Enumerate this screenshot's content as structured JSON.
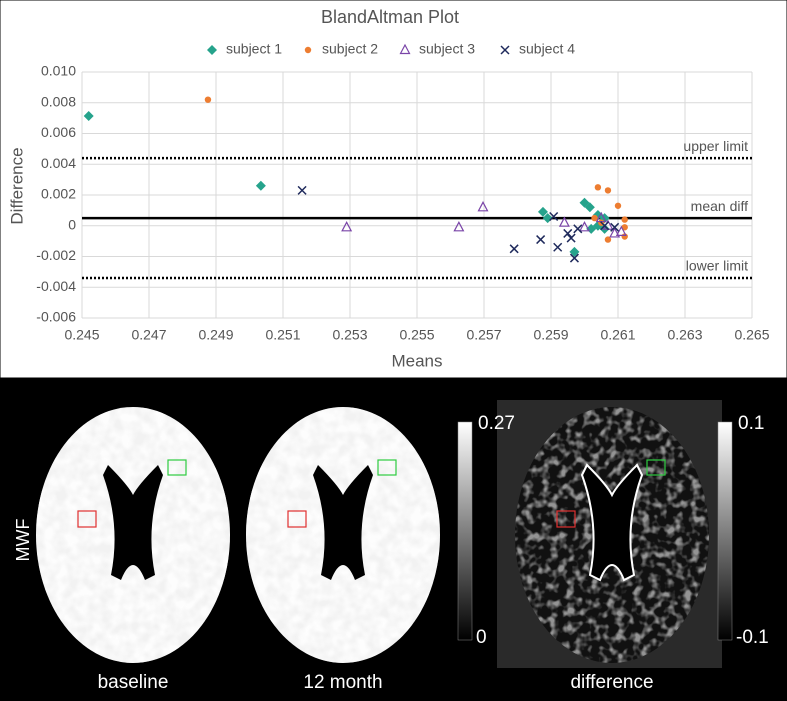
{
  "chart_data": {
    "type": "scatter",
    "title": "BlandAltman Plot",
    "x_label": "Means",
    "y_label": "Difference",
    "xlim": [
      0.245,
      0.265
    ],
    "xticks": [
      0.245,
      0.247,
      0.249,
      0.251,
      0.253,
      0.255,
      0.257,
      0.259,
      0.261,
      0.263,
      0.265
    ],
    "ylim": [
      -0.006,
      0.01
    ],
    "yticks": [
      -0.006,
      -0.004,
      -0.002,
      0,
      0.002,
      0.004,
      0.006,
      0.008,
      {
        "value": 0.01,
        "label": "0.010"
      }
    ],
    "grid": true,
    "legend": "top",
    "series": [
      {
        "name": "subject 1",
        "color": "#26a38c",
        "marker": "diamond",
        "x": [
          0.2452,
          0.25034,
          0.25876,
          0.2589,
          0.26,
          0.26016,
          0.2604,
          0.2602,
          0.2604,
          0.2606,
          0.2597,
          0.2606
        ],
        "values": [
          0.00714,
          0.0026,
          0.0009,
          0.0005,
          0.0015,
          0.0012,
          0.0007,
          -0.0002,
          0,
          0.0005,
          -0.0017,
          -0.0002
        ]
      },
      {
        "name": "subject 2",
        "color": "#ed7d31",
        "marker": "circle",
        "x": [
          0.24876,
          0.2604,
          0.2607,
          0.261,
          0.2612,
          0.2612,
          0.2607,
          0.2612,
          0.2605,
          0.2603
        ],
        "values": [
          0.0082,
          0.0025,
          0.0023,
          0.0013,
          0.0004,
          -0.0001,
          -0.0009,
          -0.0007,
          0.0002,
          0.0005
        ]
      },
      {
        "name": "subject 3",
        "color": "#7a45a8",
        "marker": "triangle",
        "x": [
          0.2529,
          0.25625,
          0.25697,
          0.2594,
          0.26,
          0.2605,
          0.2609,
          0.2611,
          0.2607
        ],
        "values": [
          -0.0001,
          -0.0001,
          0.0012,
          0.0002,
          -0.0001,
          0.0005,
          -0.0005,
          -0.0004,
          0
        ]
      },
      {
        "name": "subject 4",
        "color": "#1f2a5c",
        "marker": "x",
        "x": [
          0.25157,
          0.2579,
          0.25869,
          0.25908,
          0.2592,
          0.2596,
          0.2598,
          0.2597,
          0.2606,
          0.2609,
          0.2595
        ],
        "values": [
          0.0023,
          -0.0015,
          -0.0009,
          0.0006,
          -0.0014,
          -0.0008,
          -0.0002,
          -0.0021,
          0,
          -0.0001,
          -0.0005
        ]
      }
    ],
    "reference_lines": [
      {
        "label": "upper limit",
        "value": 0.0044,
        "style": "dotted"
      },
      {
        "label": "mean diff",
        "value": 0.0005,
        "style": "solid"
      },
      {
        "label": "lower limit",
        "value": -0.0034,
        "style": "dotted"
      }
    ]
  },
  "images": {
    "y_label": "MWF",
    "panels": [
      {
        "label": "baseline"
      },
      {
        "label": "12 month"
      },
      {
        "label": "difference"
      }
    ],
    "colorbars": [
      {
        "max": 0.27,
        "min": 0
      },
      {
        "max": 0.1,
        "min": -0.1
      }
    ]
  }
}
